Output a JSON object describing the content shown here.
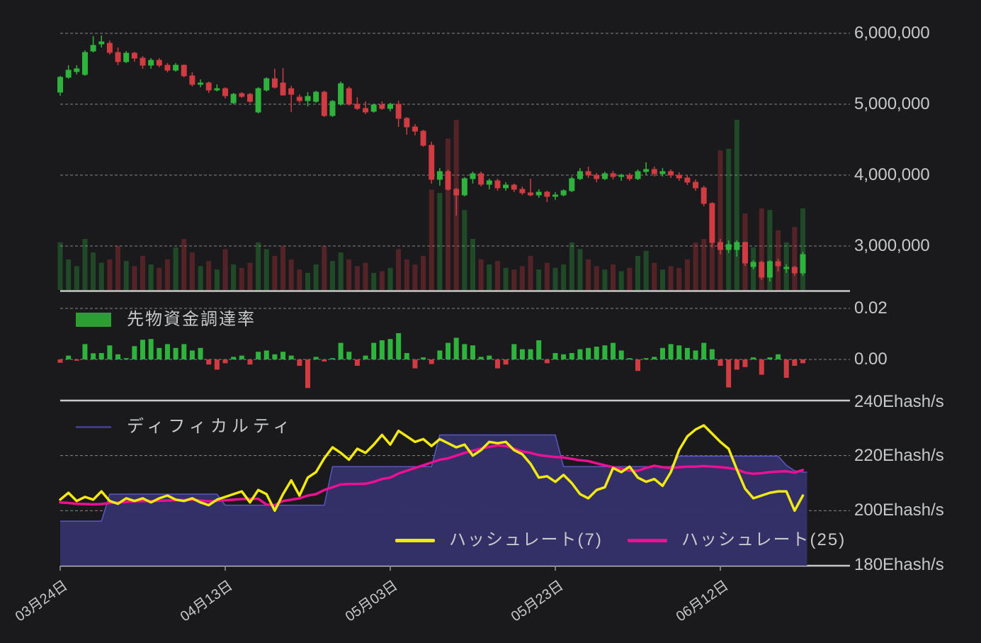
{
  "chart_data": {
    "type": "candlestick",
    "description": "daily candlesticks with volume, futures funding rate bars, and hashrate/difficulty lines",
    "start_date_label": "03月24日",
    "x_axis": {
      "ticks": [
        {
          "label": "03月24日",
          "day": 0
        },
        {
          "label": "04月13日",
          "day": 20
        },
        {
          "label": "05月03日",
          "day": 40
        },
        {
          "label": "05月23日",
          "day": 60
        },
        {
          "label": "06月12日",
          "day": 80
        }
      ]
    },
    "price_axis": {
      "ticks": [
        {
          "label": "6,000,000",
          "value": 6000000
        },
        {
          "label": "5,000,000",
          "value": 5000000
        },
        {
          "label": "4,000,000",
          "value": 4000000
        },
        {
          "label": "3,000,000",
          "value": 3000000
        }
      ]
    },
    "funding_axis": {
      "ticks": [
        {
          "label": "0.02",
          "value": 0.02
        },
        {
          "label": "0.00",
          "value": 0.0
        }
      ]
    },
    "hashrate_axis": {
      "ticks": [
        {
          "label": "240Ehash/s",
          "value": 240
        },
        {
          "label": "220Ehash/s",
          "value": 220
        },
        {
          "label": "200Ehash/s",
          "value": 200
        },
        {
          "label": "180Ehash/s",
          "value": 180
        }
      ]
    },
    "legends": {
      "funding": {
        "label": "先物資金調達率"
      },
      "difficulty": {
        "label": "ディフィカルティ"
      },
      "hashrate7": {
        "label": "ハッシュレート(7)"
      },
      "hashrate25": {
        "label": "ハッシュレート(25)"
      }
    },
    "colors": {
      "background": "#1a191c",
      "candle_up": "#2eb43d",
      "candle_down": "#d13b42",
      "grid": "#9a9a9a",
      "axis_line": "#c9c9c9",
      "text": "#c6c9ca",
      "funding_legend_swatch": "#2f9e32",
      "difficulty_fill": "#34316a",
      "difficulty_edge": "#5a57c0",
      "difficulty_swatch": "#403d85",
      "hashrate7_line": "#f2e90f",
      "hashrate25_line": "#ee0f94"
    },
    "candles_ohlc": [
      [
        5170000,
        5400000,
        5120000,
        5380000
      ],
      [
        5380000,
        5550000,
        5360000,
        5480000
      ],
      [
        5460000,
        5550000,
        5420000,
        5500000
      ],
      [
        5420000,
        5760000,
        5400000,
        5730000
      ],
      [
        5750000,
        5960000,
        5730000,
        5830000
      ],
      [
        5850000,
        5970000,
        5800000,
        5880000
      ],
      [
        5860000,
        5900000,
        5700000,
        5730000
      ],
      [
        5730000,
        5800000,
        5550000,
        5600000
      ],
      [
        5600000,
        5750000,
        5580000,
        5720000
      ],
      [
        5720000,
        5740000,
        5600000,
        5650000
      ],
      [
        5650000,
        5680000,
        5500000,
        5550000
      ],
      [
        5550000,
        5650000,
        5500000,
        5620000
      ],
      [
        5620000,
        5650000,
        5520000,
        5550000
      ],
      [
        5550000,
        5580000,
        5450000,
        5480000
      ],
      [
        5480000,
        5580000,
        5460000,
        5550000
      ],
      [
        5550000,
        5560000,
        5380000,
        5400000
      ],
      [
        5400000,
        5450000,
        5250000,
        5280000
      ],
      [
        5280000,
        5350000,
        5240000,
        5300000
      ],
      [
        5300000,
        5320000,
        5160000,
        5200000
      ],
      [
        5200000,
        5280000,
        5180000,
        5220000
      ],
      [
        5220000,
        5240000,
        5080000,
        5120000
      ],
      [
        5020000,
        5160000,
        5000000,
        5140000
      ],
      [
        5150000,
        5170000,
        5090000,
        5110000
      ],
      [
        5140000,
        5160000,
        5020000,
        5040000
      ],
      [
        4890000,
        5240000,
        4870000,
        5220000
      ],
      [
        5200000,
        5380000,
        5180000,
        5360000
      ],
      [
        5360000,
        5500000,
        5220000,
        5240000
      ],
      [
        5300000,
        5510000,
        5120000,
        5130000
      ],
      [
        5220000,
        5260000,
        4890000,
        5140000
      ],
      [
        5100000,
        5140000,
        5020000,
        5050000
      ],
      [
        5050000,
        5170000,
        4970000,
        5110000
      ],
      [
        5040000,
        5190000,
        5020000,
        5170000
      ],
      [
        5170000,
        5190000,
        4820000,
        4840000
      ],
      [
        4840000,
        5060000,
        4820000,
        5040000
      ],
      [
        5000000,
        5320000,
        4980000,
        5290000
      ],
      [
        5220000,
        5250000,
        4980000,
        5000000
      ],
      [
        5000000,
        5100000,
        4920000,
        4940000
      ],
      [
        4940000,
        5040000,
        4860000,
        4890000
      ],
      [
        4900000,
        5000000,
        4880000,
        4990000
      ],
      [
        4990000,
        5040000,
        4920000,
        4940000
      ],
      [
        4940000,
        5020000,
        4900000,
        5000000
      ],
      [
        5000000,
        5050000,
        4680000,
        4800000
      ],
      [
        4800000,
        4820000,
        4570000,
        4680000
      ],
      [
        4680000,
        4720000,
        4560000,
        4620000
      ],
      [
        4620000,
        4640000,
        4400000,
        4420000
      ],
      [
        4420000,
        4470000,
        3880000,
        3940000
      ],
      [
        3940000,
        4100000,
        3850000,
        4050000
      ],
      [
        4050000,
        4080000,
        3780000,
        3800000
      ],
      [
        3800000,
        3820000,
        3430000,
        3720000
      ],
      [
        3720000,
        3970000,
        3700000,
        3950000
      ],
      [
        3950000,
        4050000,
        3880000,
        4020000
      ],
      [
        4020000,
        4050000,
        3840000,
        3870000
      ],
      [
        3870000,
        3950000,
        3800000,
        3920000
      ],
      [
        3920000,
        3950000,
        3780000,
        3820000
      ],
      [
        3820000,
        3900000,
        3780000,
        3860000
      ],
      [
        3860000,
        3880000,
        3760000,
        3800000
      ],
      [
        3800000,
        3840000,
        3720000,
        3750000
      ],
      [
        3750000,
        3950000,
        3700000,
        3720000
      ],
      [
        3720000,
        3800000,
        3680000,
        3760000
      ],
      [
        3760000,
        3780000,
        3620000,
        3700000
      ],
      [
        3700000,
        3760000,
        3650000,
        3720000
      ],
      [
        3720000,
        3800000,
        3700000,
        3780000
      ],
      [
        3780000,
        3980000,
        3760000,
        3950000
      ],
      [
        3950000,
        4100000,
        3930000,
        4050000
      ],
      [
        4050000,
        4120000,
        3960000,
        4000000
      ],
      [
        4000000,
        4030000,
        3900000,
        3950000
      ],
      [
        3950000,
        4050000,
        3930000,
        4020000
      ],
      [
        4020000,
        4060000,
        3940000,
        3980000
      ],
      [
        3980000,
        4020000,
        3920000,
        4000000
      ],
      [
        4000000,
        4030000,
        3920000,
        3950000
      ],
      [
        3950000,
        4080000,
        3930000,
        4050000
      ],
      [
        4050000,
        4180000,
        4000000,
        4080000
      ],
      [
        4080000,
        4120000,
        3980000,
        4020000
      ],
      [
        4020000,
        4100000,
        3980000,
        4050000
      ],
      [
        4050000,
        4080000,
        3960000,
        4000000
      ],
      [
        4000000,
        4040000,
        3920000,
        3960000
      ],
      [
        3960000,
        4000000,
        3860000,
        3900000
      ],
      [
        3900000,
        3940000,
        3780000,
        3820000
      ],
      [
        3820000,
        3850000,
        3560000,
        3600000
      ],
      [
        3600000,
        3620000,
        2980000,
        3050000
      ],
      [
        3050000,
        3100000,
        2880000,
        2950000
      ],
      [
        2950000,
        3080000,
        2900000,
        3020000
      ],
      [
        2950000,
        3080000,
        2850000,
        3050000
      ],
      [
        3050000,
        3060000,
        2720000,
        2760000
      ],
      [
        2710000,
        2800000,
        2670000,
        2770000
      ],
      [
        2770000,
        2790000,
        2520000,
        2560000
      ],
      [
        2560000,
        2800000,
        2500000,
        2780000
      ],
      [
        2780000,
        2820000,
        2640000,
        2720000
      ],
      [
        2680000,
        2740000,
        2620000,
        2700000
      ],
      [
        2700000,
        2720000,
        2580000,
        2620000
      ],
      [
        2620000,
        2920000,
        2580000,
        2880000
      ]
    ],
    "volume_relative": [
      28,
      18,
      14,
      30,
      22,
      16,
      18,
      26,
      17,
      14,
      20,
      15,
      13,
      18,
      25,
      30,
      22,
      14,
      17,
      12,
      24,
      15,
      13,
      16,
      28,
      24,
      20,
      26,
      18,
      12,
      10,
      15,
      26,
      17,
      22,
      18,
      14,
      16,
      10,
      11,
      13,
      24,
      18,
      15,
      20,
      59,
      57,
      89,
      100,
      47,
      30,
      18,
      15,
      17,
      13,
      12,
      14,
      20,
      12,
      16,
      13,
      15,
      28,
      24,
      18,
      14,
      12,
      15,
      11,
      13,
      20,
      23,
      16,
      12,
      14,
      13,
      18,
      28,
      30,
      40,
      82,
      83,
      100,
      45,
      25,
      48,
      47,
      35,
      28,
      37,
      48
    ],
    "funding_rate": [
      -0.0013,
      0.0015,
      -0.0005,
      0.006,
      0.0024,
      0.0025,
      0.0055,
      0.002,
      0.0005,
      0.0052,
      0.0077,
      0.008,
      0.0045,
      0.006,
      0.0045,
      0.006,
      0.0035,
      0.0045,
      -0.002,
      -0.004,
      -0.0015,
      0.001,
      0.0015,
      -0.002,
      0.003,
      0.0035,
      0.002,
      0.003,
      0.0015,
      -0.0025,
      -0.0112,
      0.001,
      -0.0008,
      0.0005,
      0.0065,
      0.003,
      -0.0025,
      0.0015,
      0.0065,
      0.0075,
      0.008,
      0.0103,
      0.0025,
      -0.0035,
      0.0008,
      -0.0018,
      0.0035,
      0.0065,
      0.0085,
      0.006,
      0.0055,
      0.001,
      0.0015,
      -0.0035,
      -0.002,
      0.006,
      0.004,
      0.004,
      0.0075,
      -0.0015,
      0.0025,
      0.002,
      0.0025,
      0.004,
      0.0045,
      0.005,
      0.0055,
      0.0065,
      0.0035,
      0.0005,
      -0.0045,
      0.0005,
      0.001,
      0.0045,
      0.006,
      0.0055,
      0.0045,
      0.0035,
      0.0065,
      0.004,
      -0.0025,
      -0.011,
      -0.004,
      -0.003,
      0.0008,
      -0.006,
      0.0008,
      0.002,
      -0.0072,
      -0.0025,
      -0.0015
    ],
    "hashrate7": [
      204,
      206.5,
      203.5,
      205,
      204,
      207,
      203.5,
      202.5,
      204.5,
      203.5,
      204.5,
      203,
      204.5,
      205.5,
      204,
      203.5,
      204.5,
      203,
      202,
      204,
      205,
      206,
      207,
      203,
      207.5,
      206,
      200,
      206,
      211,
      205.5,
      212,
      214,
      219,
      223,
      221,
      218.5,
      222.5,
      221,
      224,
      227.5,
      224,
      229,
      227,
      225,
      226,
      223.5,
      226,
      224.5,
      223,
      224,
      220,
      222,
      225,
      224.5,
      225,
      222,
      220.5,
      217,
      212,
      212.5,
      210.5,
      213,
      210,
      206,
      204.5,
      207.5,
      208.5,
      215.5,
      214,
      216,
      212,
      210.5,
      211.5,
      209,
      214,
      222,
      227,
      229.5,
      231,
      228,
      225,
      222.5,
      215,
      208,
      204.5,
      205.5,
      206.5,
      207,
      207,
      200,
      205.5
    ],
    "hashrate25": [
      203,
      202.8,
      202.5,
      202.4,
      202.3,
      202.4,
      202.8,
      203,
      203.2,
      203.4,
      203.5,
      203.5,
      203.6,
      203.7,
      203.8,
      203.9,
      204,
      203.7,
      203.4,
      203.6,
      203.8,
      204,
      204.2,
      204.3,
      204.3,
      202.2,
      202,
      203.5,
      204,
      204.5,
      205.5,
      206,
      207.5,
      208.5,
      209.5,
      209.7,
      209.7,
      209.8,
      210.5,
      211.5,
      212,
      213.5,
      214.5,
      215.5,
      216.5,
      217.5,
      218.5,
      219,
      220,
      221,
      221.8,
      222.5,
      223.2,
      223.7,
      223.5,
      222.5,
      221.5,
      221,
      220.2,
      219.8,
      219.5,
      219.3,
      218.8,
      218.3,
      218,
      217.2,
      216.5,
      215.8,
      215.2,
      214.5,
      214.5,
      215.5,
      216.3,
      215.8,
      215.5,
      215.8,
      216,
      216,
      216.2,
      216,
      215.8,
      215.5,
      215,
      213.8,
      213.4,
      213.6,
      214,
      214.2,
      214.3,
      213.8,
      214.8
    ],
    "difficulty": [
      196.2,
      196.2,
      196.2,
      196.2,
      196.2,
      196.2,
      206,
      206,
      206,
      206,
      206,
      206,
      206,
      206,
      206,
      206,
      206,
      206,
      206,
      206,
      202,
      202,
      202,
      202,
      202,
      202,
      202,
      202,
      202,
      202,
      202,
      202,
      202,
      216,
      216,
      216,
      216,
      216,
      216,
      216,
      216,
      216,
      216,
      216,
      216,
      216,
      227.5,
      227.5,
      227.5,
      227.5,
      227.5,
      227.5,
      227.5,
      227.5,
      227.5,
      227.5,
      227.5,
      227.5,
      227.5,
      227.5,
      227.5,
      216,
      216,
      216,
      216,
      216,
      216,
      216,
      216,
      216,
      216,
      216,
      216,
      216,
      216,
      219.8,
      219.8,
      219.8,
      219.8,
      219.8,
      219.8,
      219.8,
      219.8,
      219.8,
      219.8,
      219.8,
      219.8,
      219.8,
      216.5,
      214.5,
      214
    ]
  }
}
